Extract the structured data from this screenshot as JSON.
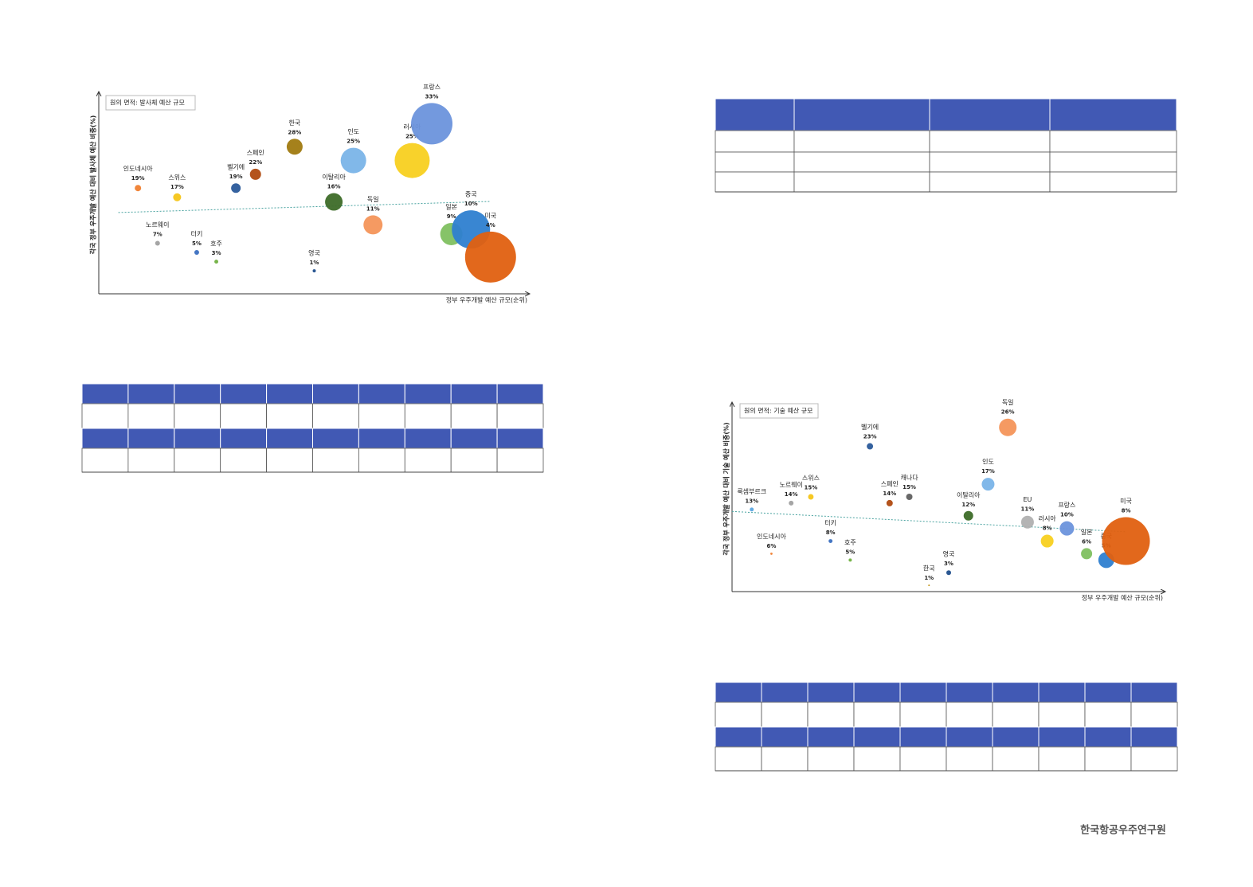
{
  "chart_data": [
    {
      "type": "bubble",
      "legend": "원의 면적: 발사체 예산 규모",
      "x_label": "정부 우주개발 예산 규모(순위)",
      "y_label": "각국 정부 우주개발 예산 대비 발사체 예산 비중(%)",
      "categories": [
        "인도네시아",
        "노르웨이",
        "스위스",
        "터키",
        "호주",
        "벨기에",
        "스페인",
        "한국",
        "영국",
        "이탈리아",
        "인도",
        "독일",
        "러시아",
        "프랑스",
        "일본",
        "중국",
        "미국"
      ],
      "x": [
        1,
        2,
        3,
        4,
        5,
        6,
        7,
        9,
        10,
        11,
        12,
        13,
        15,
        16,
        17,
        18,
        19
      ],
      "values": [
        19,
        7,
        17,
        5,
        3,
        19,
        22,
        28,
        1,
        16,
        25,
        11,
        25,
        33,
        9,
        10,
        4
      ],
      "value_labels": [
        "19%",
        "7%",
        "17%",
        "5%",
        "3%",
        "19%",
        "22%",
        "28%",
        "1%",
        "16%",
        "25%",
        "11%",
        "25%",
        "33%",
        "9%",
        "10%",
        "4%"
      ],
      "sizes": [
        16,
        9,
        25,
        9,
        6,
        36,
        49,
        100,
        4,
        121,
        256,
        144,
        484,
        676,
        196,
        576,
        1024
      ],
      "colors": [
        "#f08030",
        "#a0a0a0",
        "#f5c518",
        "#3a6fc0",
        "#70b040",
        "#2a5a9a",
        "#b04a10",
        "#a07a10",
        "#1f4e8c",
        "#3d6b28",
        "#7ab4e8",
        "#f4955a",
        "#f8d020",
        "#6c93dc",
        "#80c060",
        "#2e7fd0",
        "#e06010"
      ],
      "xlim": [
        -1,
        21
      ],
      "ylim": [
        -4,
        40
      ],
      "trendline": true
    },
    {
      "type": "bubble",
      "legend": "원의 면적: 기술 예산 규모",
      "x_label": "정부 우주개발 예산 규모(순위)",
      "y_label": "각국 정부 우주개발 예산 대비 기술 예산 비중(%)",
      "categories": [
        "룩셈부르크",
        "인도네시아",
        "노르웨이",
        "스위스",
        "터키",
        "호주",
        "벨기에",
        "스페인",
        "캐나다",
        "한국",
        "영국",
        "이탈리아",
        "인도",
        "독일",
        "EU",
        "러시아",
        "프랑스",
        "일본",
        "중국",
        "미국"
      ],
      "x": [
        0,
        1,
        2,
        3,
        4,
        5,
        6,
        7,
        8,
        9,
        10,
        11,
        12,
        13,
        14,
        15,
        16,
        17,
        18,
        19
      ],
      "values": [
        13,
        6,
        14,
        15,
        8,
        5,
        23,
        14,
        15,
        1,
        3,
        12,
        17,
        26,
        11,
        8,
        10,
        6,
        5,
        8
      ],
      "value_labels": [
        "13%",
        "6%",
        "14%",
        "15%",
        "8%",
        "5%",
        "23%",
        "14%",
        "15%",
        "1%",
        "3%",
        "12%",
        "17%",
        "26%",
        "11%",
        "8%",
        "10%",
        "6%",
        "5%",
        "8%"
      ],
      "sizes": [
        6,
        2,
        9,
        12,
        6,
        4,
        16,
        16,
        16,
        1,
        9,
        36,
        64,
        121,
        64,
        64,
        81,
        49,
        100,
        900
      ],
      "colors": [
        "#5aa5e0",
        "#f08030",
        "#a0a0a0",
        "#f5c518",
        "#3a6fc0",
        "#70b040",
        "#2a5a9a",
        "#b04a10",
        "#606060",
        "#c09010",
        "#1f4e8c",
        "#3d6b28",
        "#7ab4e8",
        "#f4955a",
        "#b0b0b0",
        "#f8d020",
        "#6c93dc",
        "#80c060",
        "#2e7fd0",
        "#e06010"
      ],
      "xlim": [
        -1,
        21
      ],
      "ylim": [
        0,
        30
      ],
      "trendline": true
    }
  ],
  "footer": "한국항공우주연구원"
}
